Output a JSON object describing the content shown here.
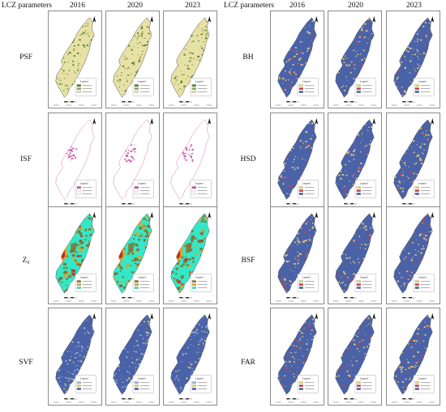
{
  "headers": {
    "left_param": "LCZ parameters",
    "right_param": "LCZ parameters",
    "years": [
      "2016",
      "2020",
      "2023"
    ]
  },
  "rows_left": [
    {
      "label": "PSF",
      "style": "psf"
    },
    {
      "label": "ISF",
      "style": "isf"
    },
    {
      "label": "Z₀",
      "style": "z0"
    },
    {
      "label": "SVF",
      "style": "svf"
    }
  ],
  "rows_right": [
    {
      "label": "BH",
      "style": "bh"
    },
    {
      "label": "HSD",
      "style": "hsd"
    },
    {
      "label": "BSF",
      "style": "bsf"
    },
    {
      "label": "FAR",
      "style": "far"
    }
  ],
  "legend_word": "Legend",
  "colors": {
    "psf": {
      "bg": "#e8e1a6",
      "mark": "#4e7a2a",
      "mark2": "#8cae52"
    },
    "isf": {
      "bg": "#ffffff",
      "mark": "#c04a9a",
      "outline": "#d97aa8"
    },
    "z0": {
      "bg": "#33e8c8",
      "mark": "#8b6b2a",
      "mark2": "#e8a020",
      "mark3": "#c03020"
    },
    "svf": {
      "bg": "#4a62a8",
      "mark": "#9ab6e0",
      "mark2": "#e6d27a"
    },
    "bh": {
      "bg": "#4a62a8",
      "mark": "#e6d27a",
      "mark2": "#d04040"
    },
    "hsd": {
      "bg": "#4a62a8",
      "mark": "#e6d27a",
      "mark2": "#d04040"
    },
    "bsf": {
      "bg": "#4a62a8",
      "mark": "#e6d27a",
      "mark2": "#d04040"
    },
    "far": {
      "bg": "#4a62a8",
      "mark": "#e6d27a",
      "mark2": "#d04040"
    }
  }
}
